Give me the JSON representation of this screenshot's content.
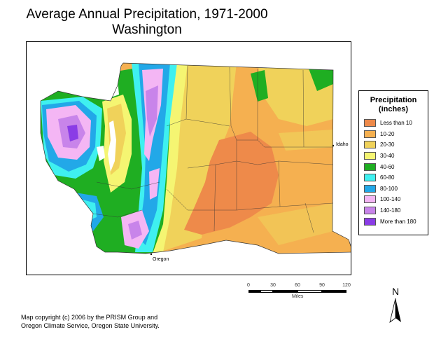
{
  "title": {
    "line1": "Average Annual Precipitation, 1971-2000",
    "line2": "Washington"
  },
  "map": {
    "labels": {
      "idaho": "Idaho",
      "oregon": "Oregon"
    }
  },
  "legend": {
    "title_line1": "Precipitation",
    "title_line2": "(inches)",
    "items": [
      {
        "label": "Less than 10",
        "color": "#ee8a4a"
      },
      {
        "label": "10-20",
        "color": "#f5b050"
      },
      {
        "label": "20-30",
        "color": "#f0d25a"
      },
      {
        "label": "30-40",
        "color": "#f5f572"
      },
      {
        "label": "40-60",
        "color": "#1fae22"
      },
      {
        "label": "60-80",
        "color": "#3ff0f0"
      },
      {
        "label": "80-100",
        "color": "#22a8e8"
      },
      {
        "label": "100-140",
        "color": "#f4b6f4"
      },
      {
        "label": "140-180",
        "color": "#c884ea"
      },
      {
        "label": "More than 180",
        "color": "#8a3ce6"
      }
    ]
  },
  "scale": {
    "ticks": [
      "0",
      "30",
      "60",
      "90",
      "120"
    ],
    "unit": "Miles"
  },
  "north_arrow": {
    "label": "N"
  },
  "copyright": {
    "line1": "Map copyright (c) 2006 by the PRISM Group and",
    "line2": "Oregon Climate Service, Oregon State University."
  }
}
